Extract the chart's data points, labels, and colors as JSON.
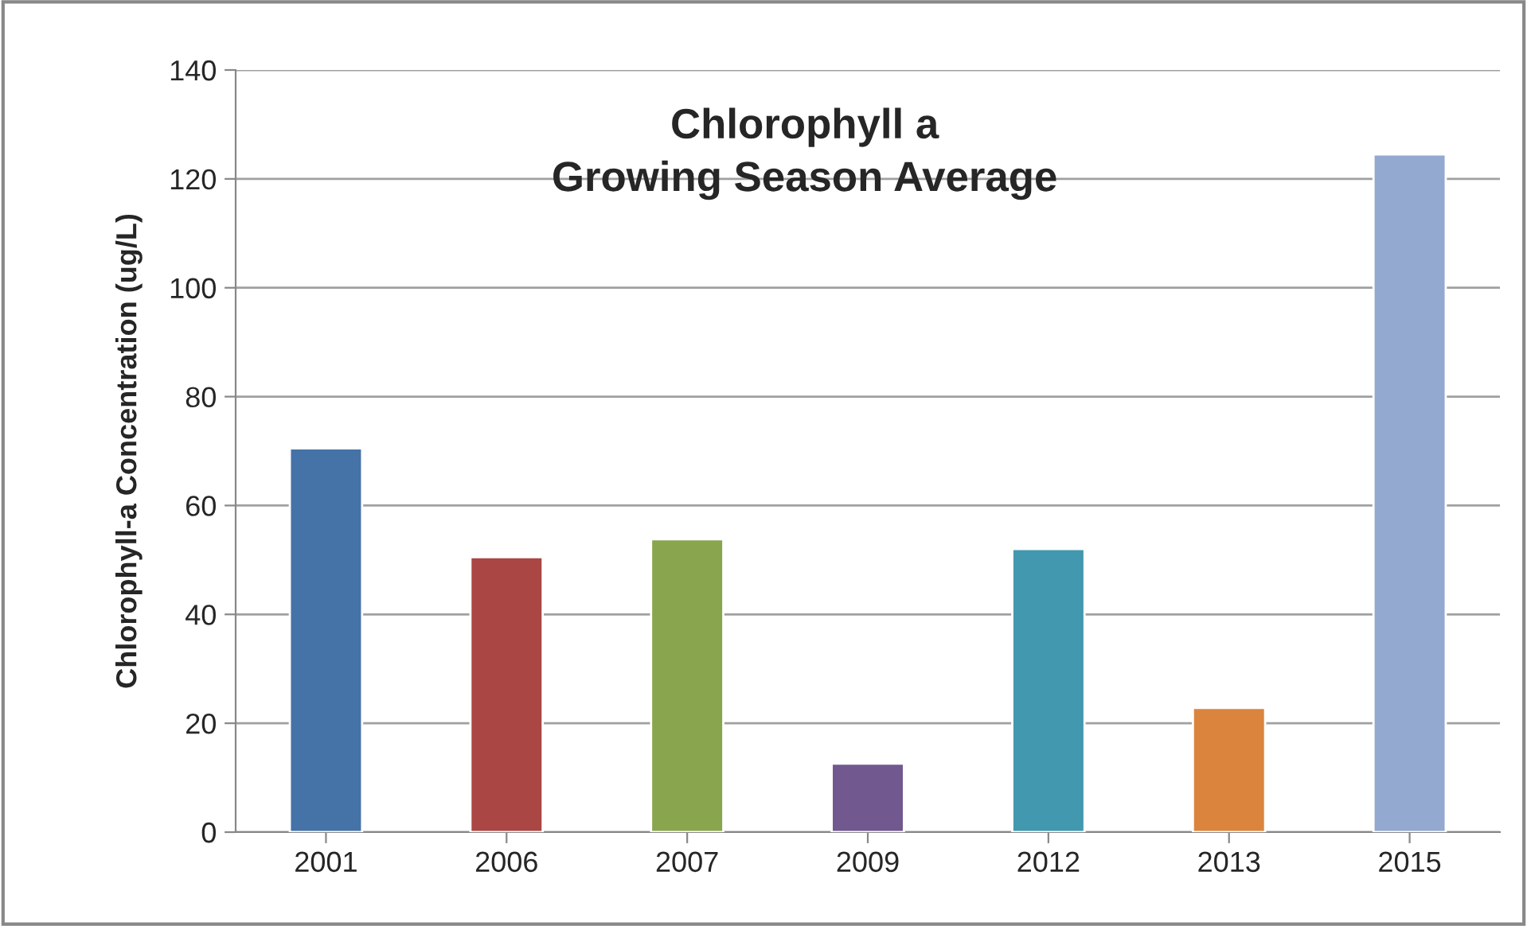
{
  "chart_data": {
    "type": "bar",
    "title": "Chlorophyll a\nGrowing Season Average",
    "ylabel": "Chlorophyll-a Concentration (ug/L)",
    "categories": [
      "2001",
      "2006",
      "2007",
      "2009",
      "2012",
      "2013",
      "2015"
    ],
    "values": [
      70.5,
      50.5,
      53.8,
      12.6,
      52,
      22.8,
      124.5
    ],
    "colors": [
      "#4572a7",
      "#aa4643",
      "#89a54e",
      "#71588f",
      "#4198af",
      "#db843d",
      "#93a9cf"
    ],
    "ylim": [
      0,
      140
    ],
    "yticks": [
      0,
      20,
      40,
      60,
      80,
      100,
      120,
      140
    ],
    "grid": "y",
    "legend": false
  }
}
